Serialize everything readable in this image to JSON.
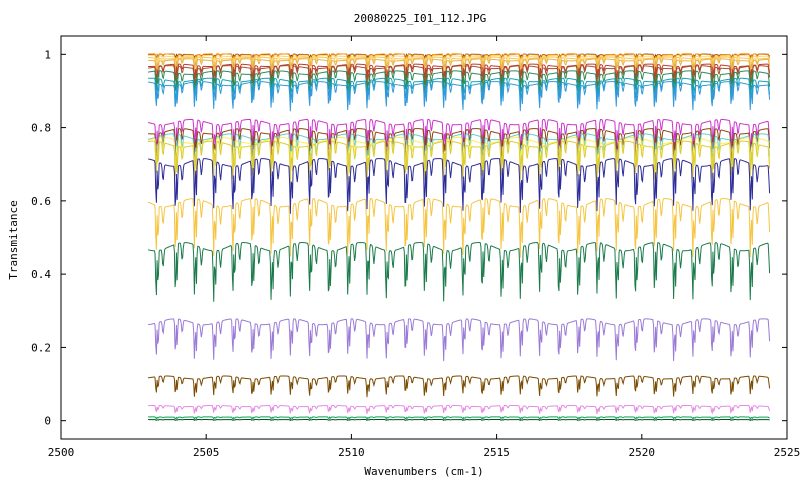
{
  "chart_data": {
    "type": "line",
    "title": "20080225_I01_112.JPG",
    "xlabel": "Wavenumbers (cm-1)",
    "ylabel": "Transmitance",
    "xlim": [
      2500,
      2525
    ],
    "ylim": [
      -0.05,
      1.05
    ],
    "xticks": [
      2500,
      2505,
      2510,
      2515,
      2520,
      2525
    ],
    "xtick_labels": [
      "2500",
      "2505",
      "2510",
      "2515",
      "2520",
      "2525"
    ],
    "yticks": [
      0,
      0.2,
      0.4,
      0.6,
      0.8,
      1
    ],
    "ytick_labels": [
      "0",
      "0.2",
      "0.4",
      "0.6",
      "0.8",
      "1"
    ],
    "grid": false,
    "x_range_of_data": [
      2503.0,
      2524.4
    ],
    "absorption_line_spacing_cm1": 0.66,
    "series": [
      {
        "color": "#6b3a2a",
        "baseline": 1.0,
        "depth": 0.01
      },
      {
        "color": "#ff9900",
        "baseline": 1.0,
        "depth": 0.02
      },
      {
        "color": "#ffd27f",
        "baseline": 0.995,
        "depth": 0.02
      },
      {
        "color": "#f2c94c",
        "baseline": 0.99,
        "depth": 0.03
      },
      {
        "color": "#e8b04a",
        "baseline": 0.985,
        "depth": 0.035
      },
      {
        "color": "#c0392b",
        "baseline": 0.97,
        "depth": 0.04
      },
      {
        "color": "#a0522d",
        "baseline": 0.965,
        "depth": 0.05
      },
      {
        "color": "#2e8b57",
        "baseline": 0.95,
        "depth": 0.06
      },
      {
        "color": "#17a2b8",
        "baseline": 0.93,
        "depth": 0.06
      },
      {
        "color": "#3399dd",
        "baseline": 0.92,
        "depth": 0.07
      },
      {
        "color": "#cc33cc",
        "baseline": 0.815,
        "depth": 0.09
      },
      {
        "color": "#8b4513",
        "baseline": 0.79,
        "depth": 0.09
      },
      {
        "color": "#66cccc",
        "baseline": 0.775,
        "depth": 0.1
      },
      {
        "color": "#ffee55",
        "baseline": 0.765,
        "depth": 0.1
      },
      {
        "color": "#ddcc33",
        "baseline": 0.755,
        "depth": 0.1
      },
      {
        "color": "#2b2b99",
        "baseline": 0.705,
        "depth": 0.13
      },
      {
        "color": "#f5c542",
        "baseline": 0.595,
        "depth": 0.14
      },
      {
        "color": "#1a7a4a",
        "baseline": 0.475,
        "depth": 0.14
      },
      {
        "color": "#9a7ad6",
        "baseline": 0.27,
        "depth": 0.1
      },
      {
        "color": "#7a4a00",
        "baseline": 0.118,
        "depth": 0.05
      },
      {
        "color": "#e58ae5",
        "baseline": 0.04,
        "depth": 0.02
      },
      {
        "color": "#00a060",
        "baseline": 0.01,
        "depth": 0.005
      },
      {
        "color": "#005500",
        "baseline": 0.003,
        "depth": 0.002
      }
    ]
  }
}
